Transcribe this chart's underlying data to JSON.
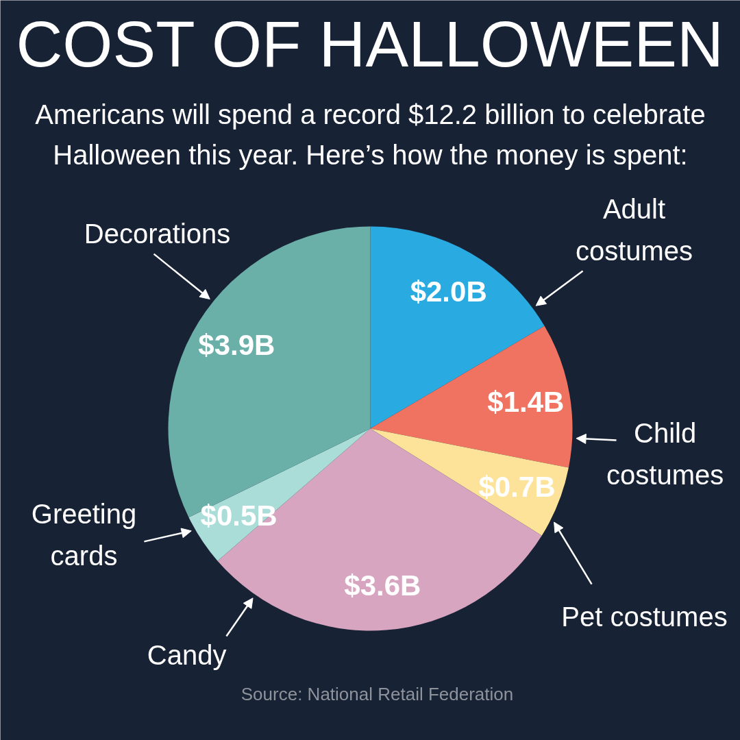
{
  "chart_data": {
    "type": "pie",
    "title": "COST OF HALLOWEEN",
    "subtitle": "Americans will spend a record $12.2 billion to celebrate Halloween this year. Here’s how the money is spent:",
    "categories": [
      "Adult costumes",
      "Child costumes",
      "Pet costumes",
      "Candy",
      "Greeting cards",
      "Decorations"
    ],
    "values": [
      2.0,
      1.4,
      0.7,
      3.6,
      0.5,
      3.9
    ],
    "colors": [
      "#29abe2",
      "#f07362",
      "#fde39a",
      "#d7a5c0",
      "#aadcd8",
      "#6ab0a8"
    ],
    "value_labels": [
      "$2.0B",
      "$1.4B",
      "$0.7B",
      "$3.6B",
      "$0.5B",
      "$3.9B"
    ],
    "annotations": [
      "Source: National Retail Federation"
    ]
  }
}
